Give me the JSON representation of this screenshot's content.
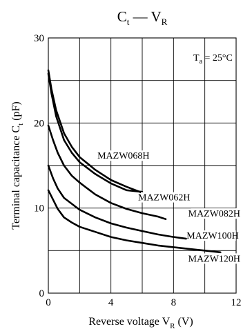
{
  "chart_data": {
    "type": "line",
    "title": {
      "main": "C",
      "sub1": "t",
      "dash": " — ",
      "main2": "V",
      "sub2": "R"
    },
    "annotation": {
      "main": "T",
      "sub": "a",
      "rest": " = 25°C"
    },
    "xlabel": {
      "text": "Reverse voltage  V",
      "sub": "R",
      "unit": "  (V)"
    },
    "ylabel": {
      "text": "Terminal capacitance  C",
      "sub": "t",
      "unit": "  (pF)"
    },
    "xlim": [
      0,
      12
    ],
    "ylim": [
      0,
      30
    ],
    "grid": true,
    "x_ticks": [
      0,
      4,
      8,
      12
    ],
    "y_ticks": [
      0,
      10,
      20,
      30
    ],
    "series": [
      {
        "name": "MAZW068H",
        "points": [
          [
            0,
            26.2
          ],
          [
            0.2,
            24
          ],
          [
            0.5,
            21.5
          ],
          [
            1,
            18.8
          ],
          [
            1.5,
            17.2
          ],
          [
            2,
            16
          ],
          [
            3,
            14.5
          ],
          [
            4,
            13.3
          ],
          [
            5,
            12.5
          ],
          [
            6,
            11.8
          ]
        ]
      },
      {
        "name": "MAZW062H",
        "points": [
          [
            0,
            25.8
          ],
          [
            0.2,
            23.5
          ],
          [
            0.5,
            20.8
          ],
          [
            1,
            18
          ],
          [
            1.5,
            16.5
          ],
          [
            2,
            15.4
          ],
          [
            3,
            14
          ],
          [
            4,
            12.9
          ],
          [
            5,
            12.1
          ],
          [
            6,
            11.9
          ]
        ]
      },
      {
        "name": "MAZW082H",
        "points": [
          [
            0,
            19.7
          ],
          [
            0.3,
            18
          ],
          [
            0.6,
            16.5
          ],
          [
            1,
            15
          ],
          [
            1.5,
            13.8
          ],
          [
            2,
            13
          ],
          [
            3,
            11.6
          ],
          [
            4,
            10.6
          ],
          [
            5,
            9.9
          ],
          [
            6,
            9.4
          ],
          [
            7,
            9
          ],
          [
            7.5,
            8.7
          ]
        ]
      },
      {
        "name": "MAZW100H",
        "points": [
          [
            0,
            15
          ],
          [
            0.3,
            13.5
          ],
          [
            0.6,
            12.3
          ],
          [
            1,
            11.2
          ],
          [
            1.5,
            10.5
          ],
          [
            2,
            9.8
          ],
          [
            3,
            8.9
          ],
          [
            4,
            8.2
          ],
          [
            5,
            7.7
          ],
          [
            6,
            7.3
          ],
          [
            7,
            6.9
          ],
          [
            8,
            6.6
          ],
          [
            8.8,
            6.4
          ]
        ]
      },
      {
        "name": "MAZW120H",
        "points": [
          [
            0,
            12.1
          ],
          [
            0.3,
            11
          ],
          [
            0.6,
            9.9
          ],
          [
            1,
            8.9
          ],
          [
            1.5,
            8.3
          ],
          [
            2,
            7.8
          ],
          [
            3,
            7.2
          ],
          [
            4,
            6.6
          ],
          [
            5,
            6.2
          ],
          [
            6,
            5.9
          ],
          [
            7,
            5.6
          ],
          [
            8,
            5.4
          ],
          [
            9,
            5.2
          ],
          [
            10,
            5
          ],
          [
            11,
            4.8
          ]
        ]
      }
    ]
  }
}
